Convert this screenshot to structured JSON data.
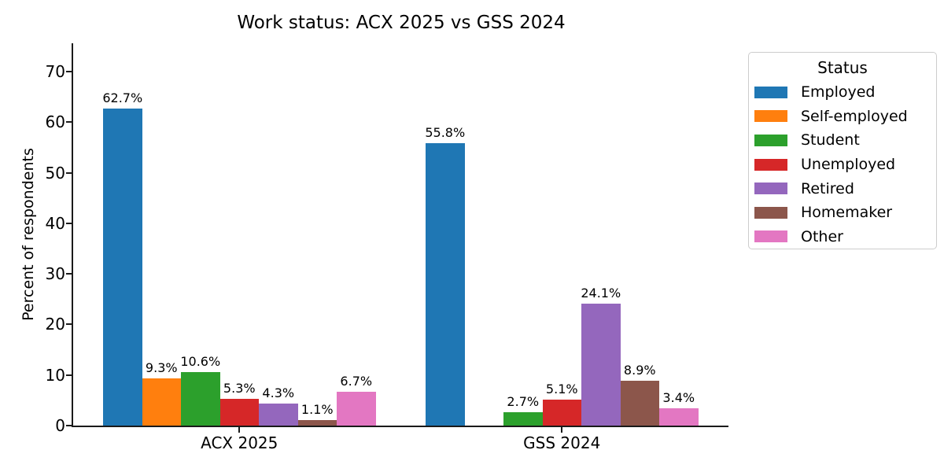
{
  "chart_data": {
    "type": "bar",
    "title": "Work status: ACX 2025 vs GSS 2024",
    "ylabel": "Percent of respondents",
    "xlabel": "",
    "categories": [
      "ACX 2025",
      "GSS 2024"
    ],
    "series": [
      {
        "name": "Employed",
        "color": "#1f77b4",
        "values": [
          62.7,
          55.8
        ],
        "labels": [
          "62.7%",
          "55.8%"
        ]
      },
      {
        "name": "Self-employed",
        "color": "#ff7f0e",
        "values": [
          9.3,
          null
        ],
        "labels": [
          "9.3%",
          ""
        ]
      },
      {
        "name": "Student",
        "color": "#2ca02c",
        "values": [
          10.6,
          2.7
        ],
        "labels": [
          "10.6%",
          "2.7%"
        ]
      },
      {
        "name": "Unemployed",
        "color": "#d62728",
        "values": [
          5.3,
          5.1
        ],
        "labels": [
          "5.3%",
          "5.1%"
        ]
      },
      {
        "name": "Retired",
        "color": "#9467bd",
        "values": [
          4.3,
          24.1
        ],
        "labels": [
          "4.3%",
          "24.1%"
        ]
      },
      {
        "name": "Homemaker",
        "color": "#8c564b",
        "values": [
          1.1,
          8.9
        ],
        "labels": [
          "1.1%",
          "8.9%"
        ]
      },
      {
        "name": "Other",
        "color": "#e377c2",
        "values": [
          6.7,
          3.4
        ],
        "labels": [
          "6.7%",
          "3.4%"
        ]
      }
    ],
    "yticks": [
      "0",
      "10",
      "20",
      "30",
      "40",
      "50",
      "60",
      "70"
    ],
    "ylim": [
      0,
      75.6
    ],
    "grid": false,
    "legend_title": "Status",
    "legend_position": "upper right, outside plot",
    "spine_color": "#1a1a1a",
    "text_color": "#000000"
  }
}
